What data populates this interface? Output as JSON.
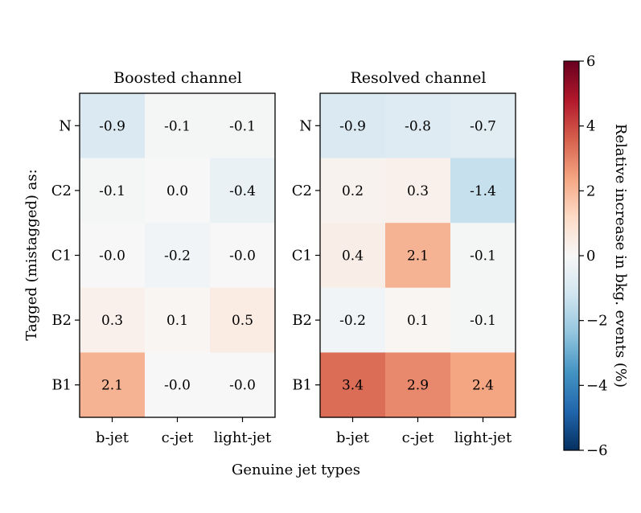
{
  "chart_data": {
    "type": "heatmap",
    "xlabel": "Genuine jet types",
    "ylabel": "Tagged (mistagged) as:",
    "x_categories": [
      "b-jet",
      "c-jet",
      "light-jet"
    ],
    "y_categories": [
      "N",
      "C2",
      "C1",
      "B2",
      "B1"
    ],
    "panels": [
      {
        "title": "Boosted channel",
        "values": [
          [
            -0.9,
            -0.1,
            -0.1
          ],
          [
            -0.1,
            0.0,
            -0.4
          ],
          [
            -0.0,
            -0.2,
            -0.0
          ],
          [
            0.3,
            0.1,
            0.5
          ],
          [
            2.1,
            -0.0,
            -0.0
          ]
        ],
        "labels": [
          [
            "-0.9",
            "-0.1",
            "-0.1"
          ],
          [
            "-0.1",
            "0.0",
            "-0.4"
          ],
          [
            "-0.0",
            "-0.2",
            "-0.0"
          ],
          [
            "0.3",
            "0.1",
            "0.5"
          ],
          [
            "2.1",
            "-0.0",
            "-0.0"
          ]
        ]
      },
      {
        "title": "Resolved channel",
        "values": [
          [
            -0.9,
            -0.8,
            -0.7
          ],
          [
            0.2,
            0.3,
            -1.4
          ],
          [
            0.4,
            2.1,
            -0.1
          ],
          [
            -0.2,
            0.1,
            -0.1
          ],
          [
            3.4,
            2.9,
            2.4
          ]
        ],
        "labels": [
          [
            "-0.9",
            "-0.8",
            "-0.7"
          ],
          [
            "0.2",
            "0.3",
            "-1.4"
          ],
          [
            "0.4",
            "2.1",
            "-0.1"
          ],
          [
            "-0.2",
            "0.1",
            "-0.1"
          ],
          [
            "3.4",
            "2.9",
            "2.4"
          ]
        ]
      }
    ],
    "colorbar": {
      "label": "Relative increase in bkg. events (%)",
      "vmin": -6,
      "vmax": 6,
      "ticks": [
        6,
        4,
        2,
        0,
        -2,
        -4,
        -6
      ],
      "tick_labels": [
        "6",
        "4",
        "2",
        "0",
        "−2",
        "−4",
        "−6"
      ],
      "colormap": "RdBu_r",
      "stops": [
        "#053061",
        "#2166ac",
        "#4393c3",
        "#92c5de",
        "#d1e5f0",
        "#f7f7f7",
        "#fddbc7",
        "#f4a582",
        "#d6604d",
        "#b2182b",
        "#67001f"
      ]
    }
  }
}
